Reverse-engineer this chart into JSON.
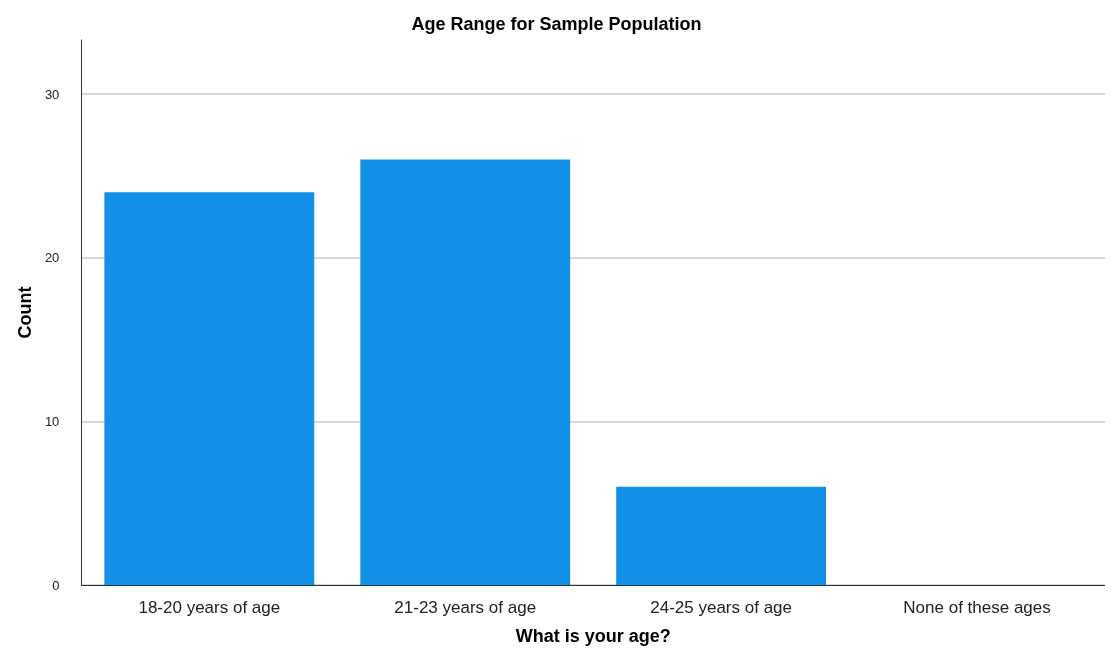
{
  "chart_data": {
    "type": "bar",
    "title": "Age Range for Sample Population",
    "xlabel": "What is your age?",
    "ylabel": "Count",
    "categories": [
      "18-20 years of age",
      "21-23 years of age",
      "24-25 years of age",
      "None of these ages"
    ],
    "values": [
      24,
      26,
      6,
      0
    ],
    "color": "#1390e6",
    "ylim": [
      0,
      33.3
    ],
    "yticks": [
      0,
      10,
      20,
      30
    ],
    "grid": "y"
  }
}
